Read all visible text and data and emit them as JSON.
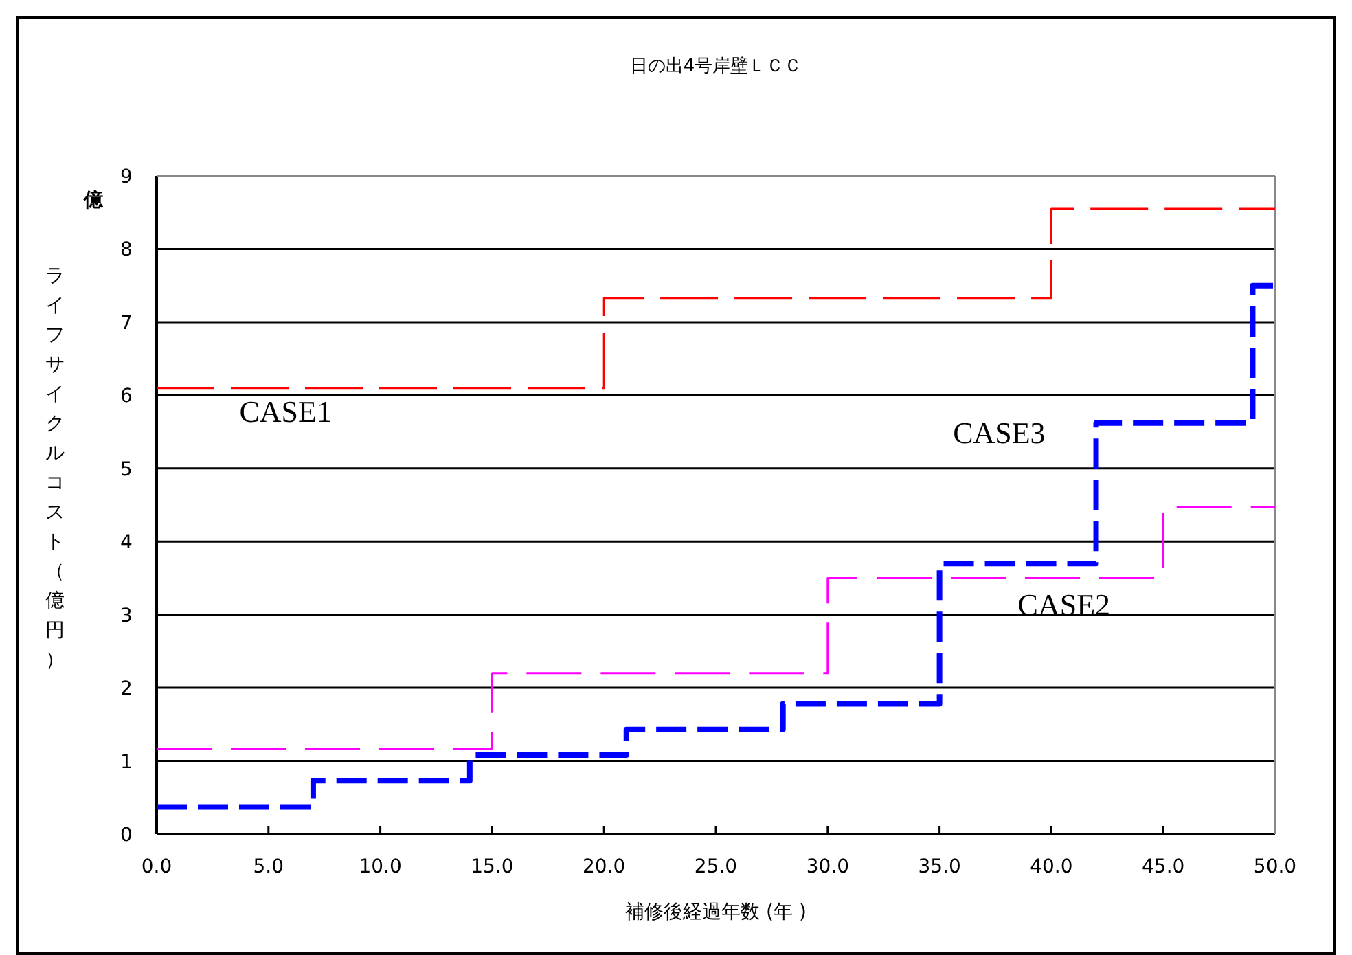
{
  "chart_data": {
    "type": "step",
    "title": "日の出4号岸壁ＬＣＣ",
    "xlabel": "補修後経過年数 (年 )",
    "ylabel": "ライフサイクルコスト（億円）",
    "annotations": [
      "億"
    ],
    "xlim": [
      0,
      50
    ],
    "ylim": [
      0,
      9
    ],
    "xticks": [
      {
        "value": 0,
        "label": "0.0"
      },
      {
        "value": 5,
        "label": "5.0"
      },
      {
        "value": 10,
        "label": "10.0"
      },
      {
        "value": 15,
        "label": "15.0"
      },
      {
        "value": 20,
        "label": "20.0"
      },
      {
        "value": 25,
        "label": "25.0"
      },
      {
        "value": 30,
        "label": "30.0"
      },
      {
        "value": 35,
        "label": "35.0"
      },
      {
        "value": 40,
        "label": "40.0"
      },
      {
        "value": 45,
        "label": "45.0"
      },
      {
        "value": 50,
        "label": "50.0"
      }
    ],
    "yticks": [
      0,
      1,
      2,
      3,
      4,
      5,
      6,
      7,
      8,
      9
    ],
    "grid": "y",
    "legend": false,
    "marker": "none",
    "line_style": "dashed",
    "series": [
      {
        "name": "CASE1",
        "color": "#ff0000",
        "x": [
          0,
          20,
          40,
          50
        ],
        "values": [
          6.1,
          7.33,
          8.55,
          8.55
        ]
      },
      {
        "name": "CASE2",
        "color": "#ff00ff",
        "x": [
          0,
          15,
          30,
          45,
          50
        ],
        "values": [
          1.17,
          2.2,
          3.5,
          4.47,
          4.47
        ]
      },
      {
        "name": "CASE3",
        "color": "#0000ff",
        "x": [
          0,
          7,
          14,
          21,
          28,
          35,
          42,
          49,
          50
        ],
        "values": [
          0.37,
          0.73,
          1.08,
          1.43,
          1.78,
          3.7,
          5.62,
          7.5,
          7.5
        ]
      }
    ]
  }
}
